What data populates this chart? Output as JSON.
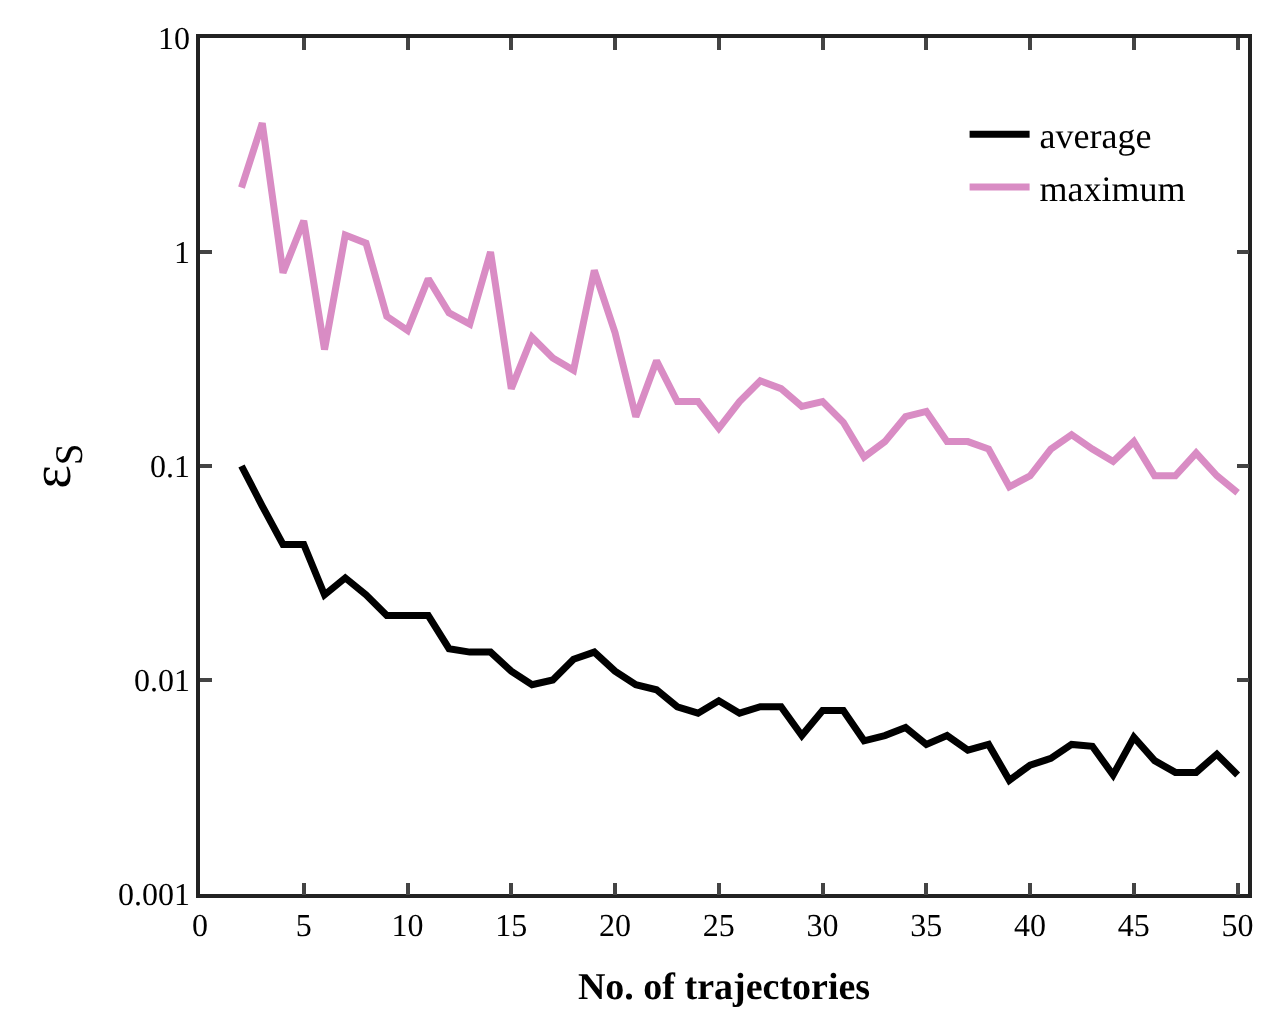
{
  "chart_data": {
    "type": "line",
    "xlabel": "No. of trajectories",
    "ylabel": "ε$_{S}$",
    "x": [
      2,
      3,
      4,
      5,
      6,
      7,
      8,
      9,
      10,
      11,
      12,
      13,
      14,
      15,
      16,
      17,
      18,
      19,
      20,
      21,
      22,
      23,
      24,
      25,
      26,
      27,
      28,
      29,
      30,
      31,
      32,
      33,
      34,
      35,
      36,
      37,
      38,
      39,
      40,
      41,
      42,
      43,
      44,
      45,
      46,
      47,
      48,
      49,
      50
    ],
    "series": [
      {
        "name": "average",
        "color": "#000000",
        "values": [
          0.1,
          0.065,
          0.043,
          0.043,
          0.025,
          0.03,
          0.025,
          0.02,
          0.02,
          0.02,
          0.014,
          0.0135,
          0.0135,
          0.011,
          0.0095,
          0.01,
          0.0125,
          0.0135,
          0.011,
          0.0095,
          0.009,
          0.0075,
          0.007,
          0.008,
          0.007,
          0.0075,
          0.0075,
          0.0055,
          0.0072,
          0.0072,
          0.0052,
          0.0055,
          0.006,
          0.005,
          0.0055,
          0.0047,
          0.005,
          0.0034,
          0.004,
          0.0043,
          0.005,
          0.0049,
          0.0036,
          0.0054,
          0.0042,
          0.0037,
          0.0037,
          0.0045,
          0.0036
        ]
      },
      {
        "name": "maximum",
        "color": "#d98cc4",
        "values": [
          2.0,
          4.0,
          0.8,
          1.4,
          0.35,
          1.2,
          1.1,
          0.5,
          0.43,
          0.75,
          0.52,
          0.46,
          1.0,
          0.23,
          0.4,
          0.32,
          0.28,
          0.82,
          0.42,
          0.17,
          0.31,
          0.2,
          0.2,
          0.15,
          0.2,
          0.25,
          0.23,
          0.19,
          0.2,
          0.16,
          0.11,
          0.13,
          0.17,
          0.18,
          0.13,
          0.13,
          0.12,
          0.08,
          0.09,
          0.12,
          0.14,
          0.12,
          0.105,
          0.13,
          0.09,
          0.09,
          0.115,
          0.09,
          0.075
        ]
      }
    ],
    "xlim": [
      0,
      50.5
    ],
    "xticks": [
      0,
      5,
      10,
      15,
      20,
      25,
      30,
      35,
      40,
      45,
      50
    ],
    "ylim": [
      0.001,
      10
    ],
    "yticks": [
      0.001,
      0.01,
      0.1,
      1,
      10
    ],
    "log": true,
    "legend": "top right",
    "marker": "none",
    "line_style": "solid"
  }
}
